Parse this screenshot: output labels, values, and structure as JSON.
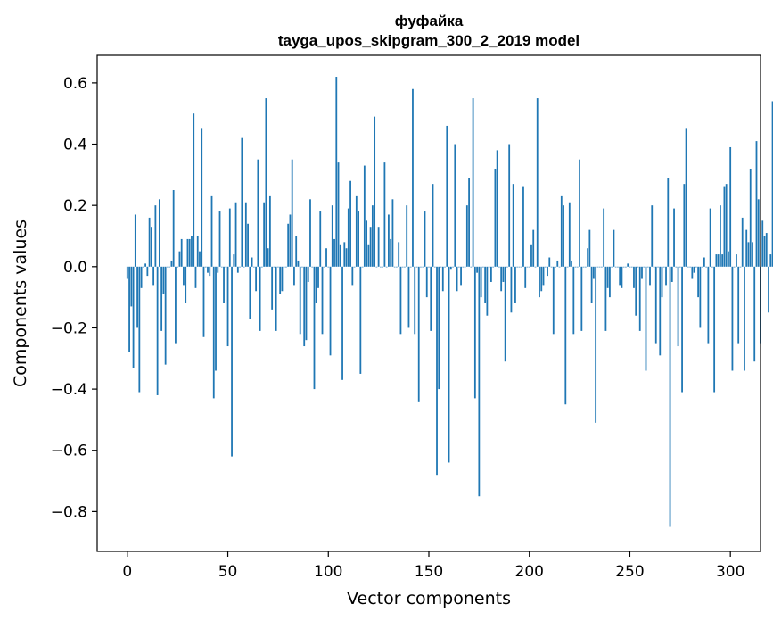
{
  "chart_data": {
    "type": "bar",
    "title": "фуфайка",
    "subtitle": "tayga_upos_skipgram_300_2_2019 model",
    "xlabel": "Vector components",
    "ylabel": "Components values",
    "xlim": [
      -15,
      315
    ],
    "ylim": [
      -0.93,
      0.69
    ],
    "xticks": [
      0,
      50,
      100,
      150,
      200,
      250,
      300
    ],
    "xtick_labels": [
      "0",
      "50",
      "100",
      "150",
      "200",
      "250",
      "300"
    ],
    "yticks": [
      -0.8,
      -0.6,
      -0.4,
      -0.2,
      0.0,
      0.2,
      0.4,
      0.6
    ],
    "ytick_labels": [
      "−0.8",
      "−0.6",
      "−0.4",
      "−0.2",
      "0.0",
      "0.2",
      "0.4",
      "0.6"
    ],
    "grid": false,
    "bar_color": "#1f77b4",
    "values": [
      -0.04,
      -0.28,
      -0.13,
      -0.33,
      0.17,
      -0.2,
      -0.41,
      -0.07,
      0.0,
      0.01,
      -0.03,
      0.16,
      0.13,
      -0.06,
      0.2,
      -0.42,
      0.22,
      -0.21,
      -0.09,
      -0.32,
      0.0,
      0.0,
      0.02,
      0.25,
      -0.25,
      0.0,
      0.05,
      0.09,
      -0.06,
      -0.12,
      0.09,
      0.09,
      0.1,
      0.5,
      -0.07,
      0.1,
      0.05,
      0.45,
      -0.23,
      0.0,
      -0.02,
      -0.03,
      0.23,
      -0.43,
      -0.34,
      -0.02,
      0.18,
      0.0,
      -0.12,
      0.0,
      -0.26,
      0.19,
      -0.62,
      0.04,
      0.21,
      -0.02,
      0.0,
      0.42,
      0.0,
      0.21,
      0.14,
      -0.17,
      0.03,
      0.0,
      -0.08,
      0.35,
      -0.21,
      0.0,
      0.21,
      0.55,
      0.06,
      0.23,
      -0.14,
      0.0,
      -0.21,
      0.0,
      -0.09,
      -0.08,
      0.0,
      0.0,
      0.14,
      0.17,
      0.35,
      -0.06,
      0.1,
      0.02,
      -0.22,
      0.0,
      -0.26,
      -0.24,
      -0.05,
      0.22,
      0.0,
      -0.4,
      -0.12,
      -0.07,
      0.18,
      -0.22,
      0.0,
      0.06,
      0.0,
      -0.29,
      0.2,
      0.09,
      0.62,
      0.34,
      0.07,
      -0.37,
      0.08,
      0.06,
      0.19,
      0.28,
      -0.06,
      0.0,
      0.23,
      0.18,
      -0.35,
      0.0,
      0.33,
      0.15,
      0.07,
      0.13,
      0.2,
      0.49,
      0.0,
      0.13,
      0.0,
      0.0,
      0.34,
      0.0,
      0.17,
      0.09,
      0.22,
      0.0,
      0.0,
      0.08,
      -0.22,
      0.0,
      0.0,
      0.2,
      -0.2,
      0.0,
      0.58,
      -0.22,
      0.0,
      -0.44,
      0.0,
      0.0,
      0.18,
      -0.1,
      0.0,
      -0.21,
      0.27,
      0.0,
      -0.68,
      -0.4,
      0.0,
      -0.08,
      0.0,
      0.46,
      -0.64,
      -0.01,
      0.0,
      0.4,
      -0.08,
      0.0,
      -0.06,
      0.0,
      0.0,
      0.2,
      0.29,
      0.0,
      0.55,
      -0.43,
      -0.02,
      -0.75,
      -0.1,
      0.0,
      -0.12,
      -0.16,
      0.0,
      -0.05,
      0.0,
      0.32,
      0.38,
      0.0,
      -0.08,
      -0.05,
      -0.31,
      0.0,
      0.4,
      -0.15,
      0.27,
      -0.12,
      0.0,
      0.0,
      0.0,
      0.26,
      -0.07,
      0.0,
      0.0,
      0.07,
      0.12,
      0.0,
      0.55,
      -0.1,
      -0.08,
      -0.06,
      0.0,
      -0.03,
      0.03,
      0.0,
      -0.22,
      0.0,
      0.02,
      0.0,
      0.23,
      0.2,
      -0.45,
      0.0,
      0.21,
      0.02,
      -0.22,
      0.0,
      0.0,
      0.35,
      -0.21,
      0.0,
      0.0,
      0.06,
      0.12,
      -0.12,
      -0.04,
      -0.51,
      0.0,
      0.0,
      0.0,
      0.19,
      -0.21,
      -0.07,
      -0.1,
      0.0,
      0.12,
      0.0,
      0.0,
      -0.06,
      -0.07,
      0.0,
      0.0,
      0.01,
      0.0,
      0.0,
      -0.07,
      -0.16,
      0.0,
      -0.21,
      -0.04,
      0.0,
      -0.34,
      0.0,
      -0.06,
      0.2,
      0.0,
      -0.25,
      0.0,
      -0.29,
      -0.1,
      0.0,
      -0.06,
      0.29,
      -0.85,
      -0.05,
      0.19,
      0.0,
      -0.26,
      0.0,
      -0.41,
      0.27,
      0.45,
      0.0,
      0.0,
      -0.04,
      -0.02,
      0.0,
      -0.1,
      -0.2,
      0.0,
      0.03,
      0.0,
      -0.25,
      0.19,
      0.0,
      -0.41,
      0.04,
      0.04,
      0.2,
      0.04,
      0.26,
      0.27,
      0.05,
      0.39,
      -0.34,
      0.0,
      0.04,
      -0.25,
      0.0,
      0.16,
      -0.34,
      0.12,
      0.08,
      0.32,
      0.08,
      -0.31,
      0.41,
      0.22,
      -0.25,
      0.15,
      0.1,
      0.11,
      -0.15,
      0.04,
      0.54,
      -0.28
    ]
  }
}
